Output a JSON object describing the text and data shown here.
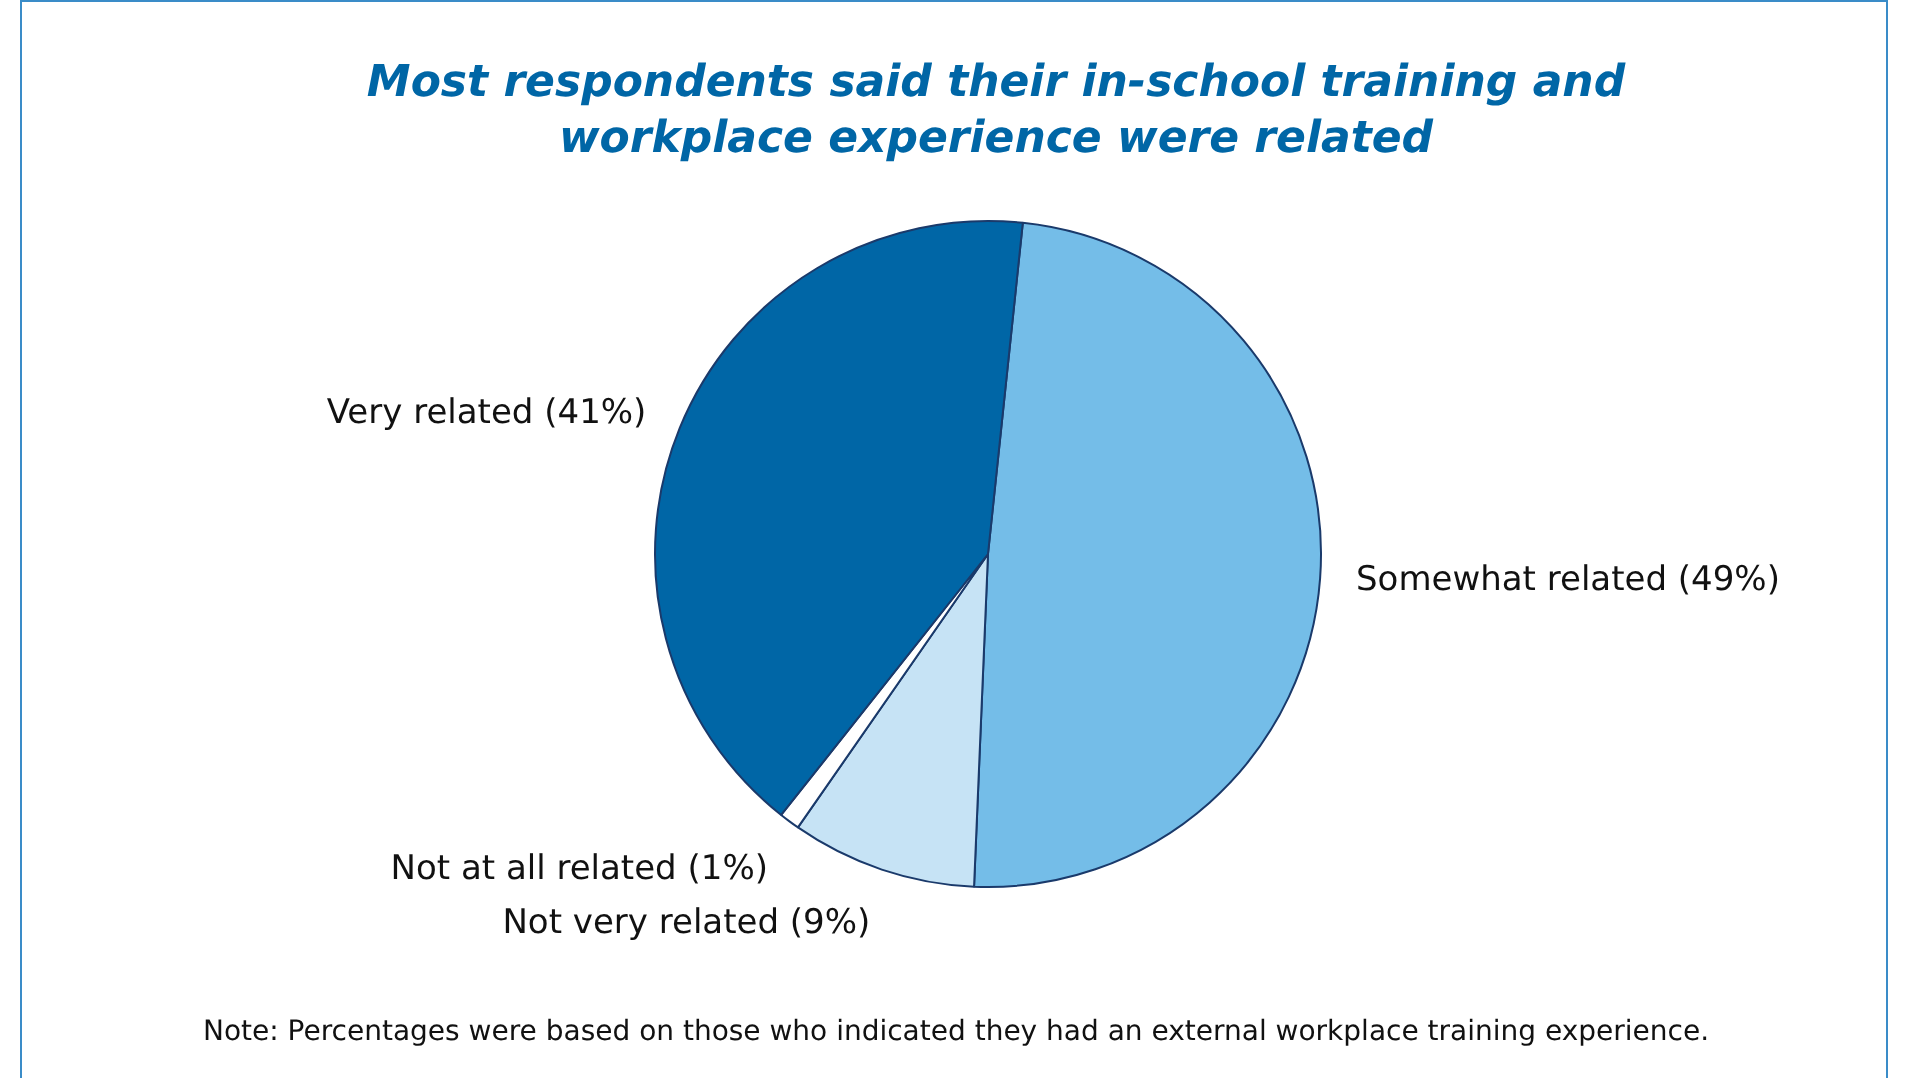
{
  "chart_data": {
    "type": "pie",
    "title": "Most respondents said their in-school training and workplace experience were related",
    "categories": [
      "Somewhat related (49%)",
      "Not very related (9%)",
      "Not at all related (1%)",
      "Very related (41%)"
    ],
    "values": [
      49,
      9,
      1,
      41
    ],
    "colors": [
      "#74bde8",
      "#c6e3f5",
      "#ffffff",
      "#0066a6"
    ],
    "legend": false,
    "annotations": [
      "Note: Percentages were based on those who indicated they had an external workplace training experience."
    ]
  }
}
